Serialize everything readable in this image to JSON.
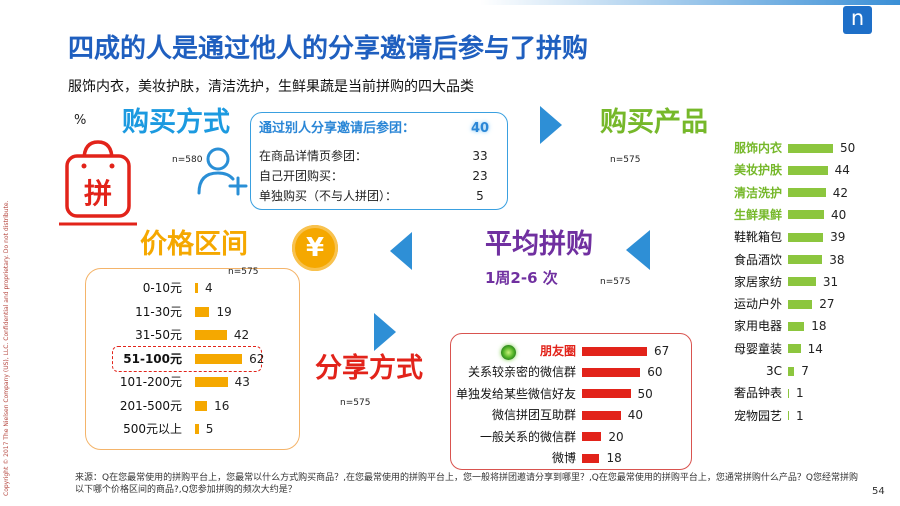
{
  "title": "四成的人是通过他人的分享邀请后参与了拼购",
  "subtitle": "服饰内衣，美妆护肤，清洁洗护，生鲜果蔬是当前拼购的四大品类",
  "copyright": "Copyright © 2017 The Nielsen Company (US), LLC. Confidential and proprietary. Do not distribute.",
  "percent_label": "%",
  "logo_letter": "n",
  "page_number": "54",
  "source_note": "来源：Q在您最常使用的拼购平台上，您最常以什么方式购买商品？,在您最常使用的拼购平台上，您一般将拼团邀请分享到哪里？,Q在您最常使用的拼购平台上，您通常拼购什么产品？Q您经常拼购以下哪个价格区间的商品?,Q您参加拼购的频次大约是？",
  "colors": {
    "title": "#1f5fbf",
    "method_blue": "#1c9ae0",
    "green_text": "#76b82a",
    "green_bar": "#8cc63e",
    "orange": "#f5a800",
    "purple": "#7030a0",
    "red": "#e2231a",
    "arrow": "#2e8fd6"
  },
  "icons": {
    "bag": "shopping-bag-icon",
    "person": "person-add-icon",
    "coin": "yen-coin-icon",
    "wechat": "wechat-moments-icon",
    "arrow": "triangle-arrow-icon",
    "logo": "nielsen-logo"
  },
  "sections": {
    "purchase_method": {
      "heading": "购买方式",
      "n": "n=580",
      "icon_char": "拼"
    },
    "purchase_product": {
      "heading": "购买产品",
      "n": "n=575"
    },
    "price_range": {
      "heading": "价格区间",
      "n": "n=575",
      "icon_char": "¥"
    },
    "avg_frequency": {
      "heading": "平均拼购",
      "value": "1周2-6 次",
      "n": "n=575"
    },
    "share_method": {
      "heading": "分享方式",
      "n": "n=575"
    }
  },
  "chart_data": [
    {
      "type": "table",
      "categories": [
        "通过别人分享邀请后参团：",
        "在商品详情页参团：",
        "自己开团购买：",
        "单独购买（不与人拼团）："
      ],
      "values": [
        40,
        33,
        23,
        5
      ],
      "emphasized": [
        0
      ]
    },
    {
      "type": "bar",
      "orientation": "horizontal",
      "categories": [
        "服饰内衣",
        "美妆护肤",
        "清洁洗护",
        "生鲜果鲜",
        "鞋靴箱包",
        "食品酒饮",
        "家居家纺",
        "运动户外",
        "家用电器",
        "母婴童装",
        "3C",
        "奢品钟表",
        "宠物园艺"
      ],
      "values": [
        50,
        44,
        42,
        40,
        39,
        38,
        31,
        27,
        18,
        14,
        7,
        1,
        1
      ],
      "emphasized": [
        0,
        1,
        2,
        3
      ]
    },
    {
      "type": "bar",
      "orientation": "horizontal",
      "categories": [
        "0-10元",
        "11-30元",
        "31-50元",
        "51-100元",
        "101-200元",
        "201-500元",
        "500元以上"
      ],
      "values": [
        4,
        19,
        42,
        62,
        43,
        16,
        5
      ],
      "emphasized": [
        3
      ]
    },
    {
      "type": "bar",
      "orientation": "horizontal",
      "categories": [
        "朋友圈",
        "关系较亲密的微信群",
        "单独发给某些微信好友",
        "微信拼团互助群",
        "一般关系的微信群",
        "微博"
      ],
      "values": [
        67,
        60,
        50,
        40,
        20,
        18
      ],
      "emphasized": [
        0
      ]
    }
  ]
}
